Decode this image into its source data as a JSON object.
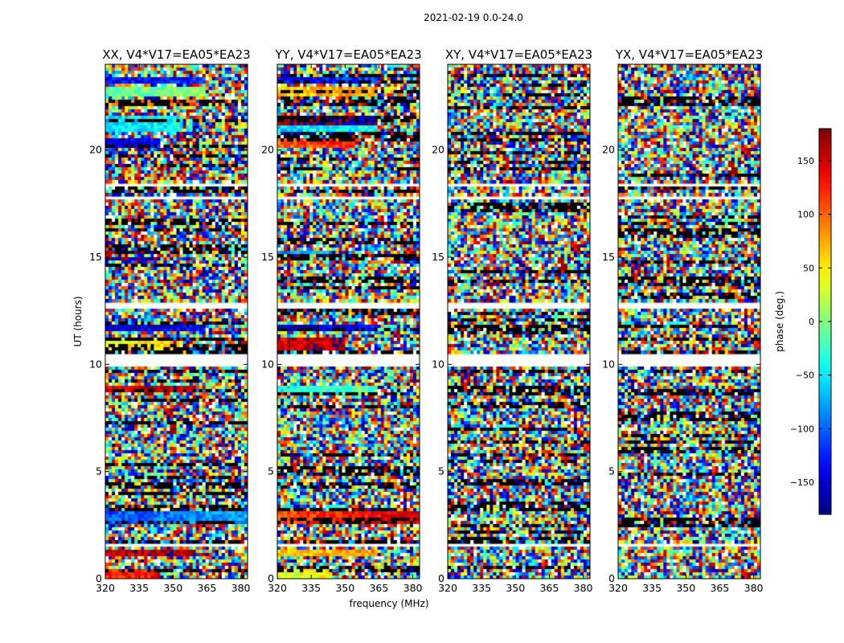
{
  "chart_data": {
    "type": "heatmap",
    "title": "2021-02-19 0.0-24.0",
    "xlabel": "frequency (MHz)",
    "ylabel": "UT (hours)",
    "xlim": [
      320,
      383
    ],
    "ylim": [
      0,
      24
    ],
    "xticks": [
      "320",
      "335",
      "350",
      "365",
      "380"
    ],
    "yticks": [
      "0",
      "5",
      "10",
      "15",
      "20"
    ],
    "colorbar": {
      "label": "phase (deg.)",
      "range": [
        -180,
        180
      ],
      "ticks": [
        "150",
        "100",
        "50",
        "0",
        "−50",
        "−100",
        "−150"
      ],
      "tick_values": [
        150,
        100,
        50,
        0,
        -50,
        -100,
        -150
      ],
      "colormap": "jet"
    },
    "panels": [
      {
        "title": "XX, V4*V17=EA05*EA23",
        "coherent": true,
        "coherent_rows": [
          {
            "t0": 23.05,
            "t1": 23.45,
            "phase": -140,
            "fmax": 365
          },
          {
            "t0": 22.55,
            "t1": 22.95,
            "phase": -20,
            "fmax": 365
          },
          {
            "t0": 22.1,
            "t1": 22.4,
            "phase": 80,
            "fmax": 360
          },
          {
            "t0": 20.8,
            "t1": 21.6,
            "phase": -60,
            "fmax": 355
          },
          {
            "t0": 20.1,
            "t1": 20.5,
            "phase": -150,
            "fmax": 345
          },
          {
            "t0": 15.1,
            "t1": 15.3,
            "phase": 170,
            "fmax": 340
          },
          {
            "t0": 14.9,
            "t1": 15.05,
            "phase": -170,
            "fmax": 340
          },
          {
            "t0": 11.6,
            "t1": 11.9,
            "phase": -160,
            "fmax": 365
          },
          {
            "t0": 10.6,
            "t1": 11.3,
            "phase": 40,
            "fmax": 350
          },
          {
            "t0": 8.7,
            "t1": 9.0,
            "phase": 140,
            "fmax": 360
          },
          {
            "t0": 2.6,
            "t1": 3.2,
            "phase": -110,
            "fmax": 383
          },
          {
            "t0": 1.0,
            "t1": 1.4,
            "phase": 150,
            "fmax": 360
          },
          {
            "t0": 0.05,
            "t1": 0.5,
            "phase": 120,
            "fmax": 345
          }
        ],
        "blank_rows": [
          [
            0.55,
            0.65
          ],
          [
            1.5,
            1.6
          ],
          [
            9.95,
            10.5
          ],
          [
            12.55,
            12.85
          ],
          [
            17.65,
            17.9
          ],
          [
            18.35,
            18.5
          ]
        ]
      },
      {
        "title": "YY, V4*V17=EA05*EA23",
        "coherent": true,
        "coherent_rows": [
          {
            "t0": 23.05,
            "t1": 23.45,
            "phase": -140,
            "fmax": 365
          },
          {
            "t0": 22.55,
            "t1": 22.95,
            "phase": 60,
            "fmax": 365
          },
          {
            "t0": 21.2,
            "t1": 21.6,
            "phase": 170,
            "fmax": 365
          },
          {
            "t0": 20.8,
            "t1": 21.2,
            "phase": -60,
            "fmax": 365
          },
          {
            "t0": 20.1,
            "t1": 20.5,
            "phase": 100,
            "fmax": 355
          },
          {
            "t0": 15.1,
            "t1": 15.3,
            "phase": -90,
            "fmax": 345
          },
          {
            "t0": 11.6,
            "t1": 11.9,
            "phase": -160,
            "fmax": 365
          },
          {
            "t0": 10.6,
            "t1": 11.3,
            "phase": 150,
            "fmax": 350
          },
          {
            "t0": 8.7,
            "t1": 9.0,
            "phase": -40,
            "fmax": 365
          },
          {
            "t0": 2.6,
            "t1": 3.2,
            "phase": 110,
            "fmax": 383
          },
          {
            "t0": 1.0,
            "t1": 1.4,
            "phase": 60,
            "fmax": 365
          },
          {
            "t0": 0.05,
            "t1": 0.5,
            "phase": 30,
            "fmax": 345
          }
        ],
        "blank_rows": [
          [
            0.55,
            0.65
          ],
          [
            1.5,
            1.6
          ],
          [
            9.95,
            10.5
          ],
          [
            12.55,
            12.85
          ],
          [
            17.65,
            17.9
          ],
          [
            18.35,
            18.5
          ]
        ]
      },
      {
        "title": "XY, V4*V17=EA05*EA23",
        "coherent": false,
        "coherent_rows": [],
        "blank_rows": [
          [
            0.55,
            0.65
          ],
          [
            1.5,
            1.6
          ],
          [
            9.95,
            10.5
          ],
          [
            12.55,
            12.85
          ],
          [
            17.65,
            17.9
          ],
          [
            18.35,
            18.5
          ]
        ]
      },
      {
        "title": "YX, V4*V17=EA05*EA23",
        "coherent": false,
        "coherent_rows": [],
        "blank_rows": [
          [
            0.55,
            0.65
          ],
          [
            1.5,
            1.6
          ],
          [
            9.95,
            10.5
          ],
          [
            12.55,
            12.85
          ],
          [
            17.65,
            17.9
          ],
          [
            18.35,
            18.5
          ]
        ]
      }
    ]
  },
  "colors": {
    "frame": "#000000",
    "background": "#ffffff"
  }
}
